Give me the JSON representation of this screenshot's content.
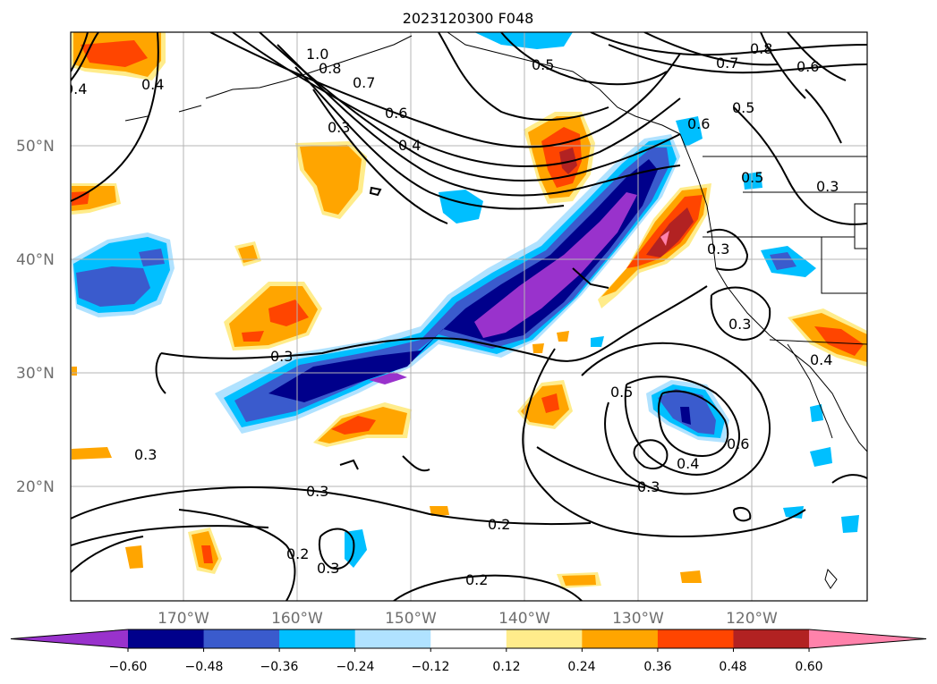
{
  "title": "2023120300 F048",
  "lat_labels": [
    "50°N",
    "40°N",
    "30°N",
    "20°N"
  ],
  "lon_labels": [
    "170°W",
    "160°W",
    "150°W",
    "140°W",
    "130°W",
    "120°W"
  ],
  "colorbar": {
    "colors": [
      "#9932cc",
      "#00008b",
      "#3a5bcd",
      "#00bfff",
      "#b0e2ff",
      "#ffffff",
      "#ffec8b",
      "#ffa500",
      "#ff4500",
      "#b22222",
      "#ff82ab"
    ],
    "tick_labels": [
      "−0.60",
      "−0.48",
      "−0.36",
      "−0.24",
      "−0.12",
      "0.12",
      "0.24",
      "0.36",
      "0.48",
      "0.60"
    ]
  },
  "contour_labels": [
    "1.0",
    "0.8",
    "0.7",
    "0.6",
    "0.5",
    "0.4",
    "0.3",
    "0.8",
    "0.7",
    "0.6",
    "0.5",
    "0.6",
    "0.5",
    "0.3",
    "0.4",
    "0.3",
    "0.3",
    "0.5",
    "0.6",
    "0.4",
    "0.3",
    "0.3",
    "0.3",
    "0.2",
    "0.2",
    "0.3",
    "0.2",
    "0.4",
    "0.3",
    "0.4"
  ]
}
